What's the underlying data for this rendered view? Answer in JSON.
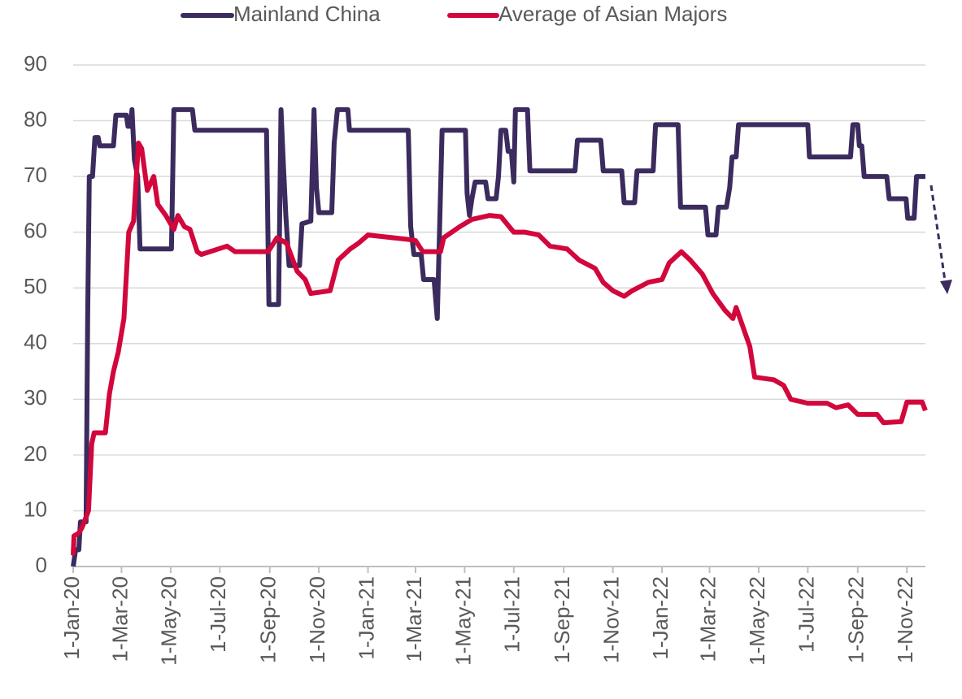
{
  "chart_data": {
    "type": "line",
    "xlim": [
      "2020-01-01",
      "2022-11-24"
    ],
    "xticks": [
      {
        "value": "2020-01-01",
        "label": "1-Jan-20"
      },
      {
        "value": "2020-03-01",
        "label": "1-Mar-20"
      },
      {
        "value": "2020-05-01",
        "label": "1-May-20"
      },
      {
        "value": "2020-07-01",
        "label": "1-Jul-20"
      },
      {
        "value": "2020-09-01",
        "label": "1-Sep-20"
      },
      {
        "value": "2020-11-01",
        "label": "1-Nov-20"
      },
      {
        "value": "2021-01-01",
        "label": "1-Jan-21"
      },
      {
        "value": "2021-03-01",
        "label": "1-Mar-21"
      },
      {
        "value": "2021-05-01",
        "label": "1-May-21"
      },
      {
        "value": "2021-07-01",
        "label": "1-Jul-21"
      },
      {
        "value": "2021-09-01",
        "label": "1-Sep-21"
      },
      {
        "value": "2021-11-01",
        "label": "1-Nov-21"
      },
      {
        "value": "2022-01-01",
        "label": "1-Jan-22"
      },
      {
        "value": "2022-03-01",
        "label": "1-Mar-22"
      },
      {
        "value": "2022-05-01",
        "label": "1-May-22"
      },
      {
        "value": "2022-07-01",
        "label": "1-Jul-22"
      },
      {
        "value": "2022-09-01",
        "label": "1-Sep-22"
      },
      {
        "value": "2022-11-01",
        "label": "1-Nov-22"
      }
    ],
    "ylim": [
      0,
      90
    ],
    "yticks": [
      0,
      10,
      20,
      30,
      40,
      50,
      60,
      70,
      80,
      90
    ],
    "grid": true,
    "series": [
      {
        "name": "Mainland China",
        "color": "#3b2b5e",
        "x": [
          "2020-01-01",
          "2020-01-04",
          "2020-01-08",
          "2020-01-10",
          "2020-01-17",
          "2020-01-19",
          "2020-01-21",
          "2020-01-25",
          "2020-01-28",
          "2020-02-01",
          "2020-02-03",
          "2020-02-20",
          "2020-02-23",
          "2020-03-07",
          "2020-03-09",
          "2020-03-12",
          "2020-03-14",
          "2020-03-17",
          "2020-03-21",
          "2020-03-24",
          "2020-05-02",
          "2020-05-05",
          "2020-05-28",
          "2020-05-31",
          "2020-08-28",
          "2020-08-31",
          "2020-09-12",
          "2020-09-15",
          "2020-09-18",
          "2020-09-21",
          "2020-09-25",
          "2020-10-08",
          "2020-10-11",
          "2020-10-22",
          "2020-10-26",
          "2020-10-29",
          "2020-11-01",
          "2020-11-17",
          "2020-11-20",
          "2020-11-24",
          "2020-12-07",
          "2020-12-09",
          "2021-02-20",
          "2021-02-23",
          "2021-02-27",
          "2021-03-08",
          "2021-03-11",
          "2021-03-24",
          "2021-03-28",
          "2021-04-03",
          "2021-05-02",
          "2021-05-04",
          "2021-05-07",
          "2021-05-10",
          "2021-05-14",
          "2021-05-27",
          "2021-05-30",
          "2021-06-09",
          "2021-06-12",
          "2021-06-15",
          "2021-06-21",
          "2021-06-24",
          "2021-06-28",
          "2021-07-01",
          "2021-07-03",
          "2021-07-18",
          "2021-07-21",
          "2021-09-15",
          "2021-09-18",
          "2021-10-17",
          "2021-10-20",
          "2021-11-12",
          "2021-11-15",
          "2021-11-28",
          "2021-12-01",
          "2021-12-21",
          "2021-12-24",
          "2022-01-21",
          "2022-01-24",
          "2022-02-24",
          "2022-02-27",
          "2022-03-09",
          "2022-03-12",
          "2022-03-22",
          "2022-03-26",
          "2022-03-29",
          "2022-04-03",
          "2022-04-06",
          "2022-07-01",
          "2022-07-03",
          "2022-08-23",
          "2022-08-26",
          "2022-09-01",
          "2022-09-03",
          "2022-09-06",
          "2022-09-09",
          "2022-10-07",
          "2022-10-10",
          "2022-10-31",
          "2022-11-02",
          "2022-11-10",
          "2022-11-13",
          "2022-11-24"
        ],
        "values": [
          0,
          3,
          3,
          8,
          8,
          45,
          70,
          70,
          77,
          77,
          75.5,
          75.5,
          81,
          81,
          79,
          79,
          82,
          73,
          70,
          57,
          57,
          82,
          82,
          78.3,
          78.3,
          47,
          47,
          82,
          72,
          63,
          54,
          54,
          61.5,
          62,
          82,
          68,
          63.5,
          63.5,
          76,
          82,
          82,
          78.3,
          78.3,
          61,
          56,
          56,
          51.5,
          51.5,
          44.5,
          78.3,
          78.3,
          67,
          63,
          66,
          69,
          69,
          66,
          66,
          70,
          78.3,
          78.3,
          74.5,
          74.5,
          69,
          82,
          82,
          71,
          71,
          76.5,
          76.5,
          71,
          71,
          65.3,
          65.3,
          71,
          71,
          79.3,
          79.3,
          64.5,
          64.5,
          59.5,
          59.5,
          64.5,
          64.5,
          68,
          73.5,
          73.5,
          79.3,
          79.3,
          73.5,
          73.5,
          79.3,
          79.3,
          75.5,
          75.5,
          70,
          70,
          66,
          66,
          62.5,
          62.5,
          70,
          70
        ]
      },
      {
        "name": "Average of Asian Majors",
        "color": "#d2073c",
        "x": [
          "2020-01-01",
          "2020-01-02",
          "2020-01-08",
          "2020-01-12",
          "2020-01-20",
          "2020-01-24",
          "2020-01-27",
          "2020-02-10",
          "2020-02-15",
          "2020-02-20",
          "2020-02-26",
          "2020-03-04",
          "2020-03-10",
          "2020-03-16",
          "2020-03-22",
          "2020-03-26",
          "2020-04-02",
          "2020-04-10",
          "2020-04-15",
          "2020-04-25",
          "2020-05-05",
          "2020-05-10",
          "2020-05-18",
          "2020-05-25",
          "2020-06-03",
          "2020-06-08",
          "2020-07-10",
          "2020-07-20",
          "2020-08-30",
          "2020-09-10",
          "2020-09-22",
          "2020-10-05",
          "2020-10-15",
          "2020-10-22",
          "2020-11-15",
          "2020-11-25",
          "2020-12-10",
          "2020-12-20",
          "2021-01-01",
          "2021-02-01",
          "2021-02-20",
          "2021-03-01",
          "2021-03-10",
          "2021-04-01",
          "2021-04-05",
          "2021-04-25",
          "2021-05-10",
          "2021-06-01",
          "2021-06-15",
          "2021-07-01",
          "2021-07-15",
          "2021-08-01",
          "2021-08-15",
          "2021-09-05",
          "2021-09-20",
          "2021-10-10",
          "2021-10-20",
          "2021-11-01",
          "2021-11-15",
          "2021-11-25",
          "2021-12-15",
          "2022-01-01",
          "2022-01-10",
          "2022-01-25",
          "2022-02-05",
          "2022-02-20",
          "2022-03-05",
          "2022-03-20",
          "2022-03-30",
          "2022-04-03",
          "2022-04-20",
          "2022-04-26",
          "2022-05-20",
          "2022-06-01",
          "2022-06-10",
          "2022-07-01",
          "2022-07-25",
          "2022-08-05",
          "2022-08-20",
          "2022-09-01",
          "2022-09-25",
          "2022-10-03",
          "2022-10-25",
          "2022-11-01",
          "2022-11-20",
          "2022-11-24"
        ],
        "values": [
          2,
          5.5,
          6,
          7,
          10,
          22,
          24,
          24,
          31,
          35,
          38.5,
          44.5,
          60,
          62,
          76,
          75,
          67.5,
          70,
          65,
          63,
          60.5,
          63,
          61,
          60.5,
          56.5,
          56,
          57.5,
          56.5,
          56.5,
          59,
          58,
          53,
          51.5,
          49,
          49.5,
          55,
          57,
          58,
          59.5,
          59,
          58.7,
          58.5,
          56.5,
          56.5,
          59,
          61,
          62.3,
          63,
          62.8,
          60,
          60,
          59.5,
          57.5,
          57,
          55,
          53.5,
          51,
          49.5,
          48.5,
          49.5,
          51,
          51.5,
          54.5,
          56.5,
          55,
          52.5,
          49,
          46,
          44.5,
          46.5,
          39.5,
          34,
          33.5,
          32.5,
          30,
          29.3,
          29.3,
          28.5,
          29,
          27.3,
          27.3,
          25.8,
          26,
          29.5,
          29.5,
          28
        ]
      }
    ]
  }
}
